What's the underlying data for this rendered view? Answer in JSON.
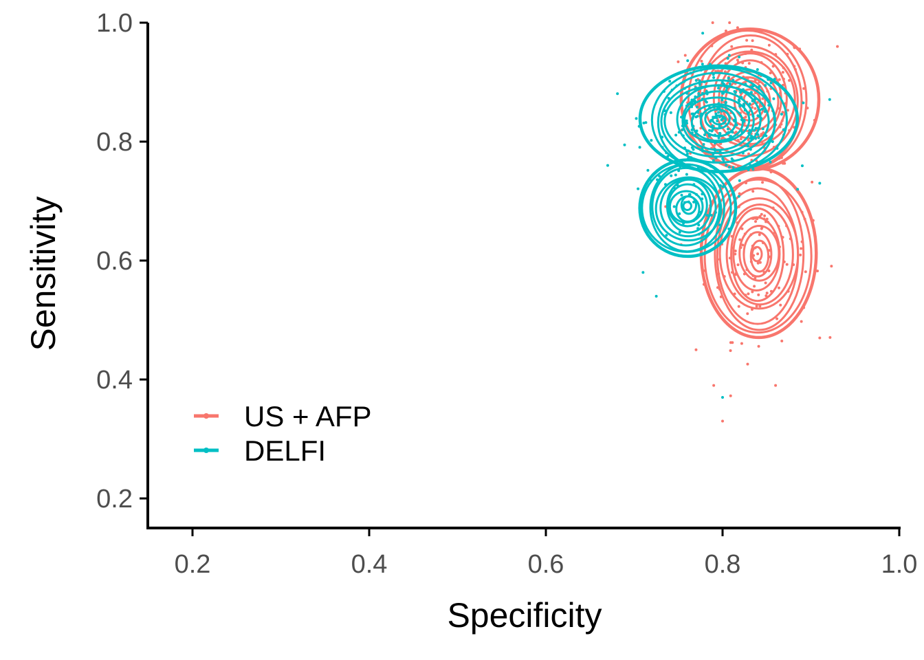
{
  "chart_data": {
    "type": "scatter",
    "title": "",
    "xlabel": "Specificity",
    "ylabel": "Sensitivity",
    "xlim": [
      0.15,
      1.0
    ],
    "ylim": [
      0.15,
      1.0
    ],
    "xticks": [
      "0.2",
      "0.4",
      "0.6",
      "0.8",
      "1.0"
    ],
    "yticks": [
      "0.2",
      "0.4",
      "0.6",
      "0.8",
      "1.0"
    ],
    "grid": false,
    "legend_position": "bottom-left",
    "overlay": "2D density contours per series",
    "series": [
      {
        "name": "US + AFP",
        "color": "#F8766D",
        "clusters": [
          {
            "center": [
              0.83,
              0.87
            ],
            "spread": [
              0.035,
              0.06
            ],
            "n": 160
          },
          {
            "center": [
              0.84,
              0.61
            ],
            "spread": [
              0.03,
              0.07
            ],
            "n": 120
          }
        ],
        "outliers": [
          [
            0.8,
            0.33
          ],
          [
            0.77,
            0.45
          ],
          [
            0.93,
            0.96
          ],
          [
            0.91,
            0.47
          ],
          [
            0.86,
            0.39
          ],
          [
            0.79,
            0.39
          ]
        ]
      },
      {
        "name": "DELFI",
        "color": "#00BFC4",
        "clusters": [
          {
            "center": [
              0.795,
              0.835
            ],
            "spread": [
              0.04,
              0.045
            ],
            "n": 260
          },
          {
            "center": [
              0.76,
              0.69
            ],
            "spread": [
              0.025,
              0.04
            ],
            "n": 40
          }
        ],
        "outliers": [
          [
            0.8,
            0.37
          ],
          [
            0.67,
            0.76
          ],
          [
            0.725,
            0.54
          ],
          [
            0.71,
            0.58
          ],
          [
            0.91,
            0.73
          ]
        ]
      }
    ]
  }
}
